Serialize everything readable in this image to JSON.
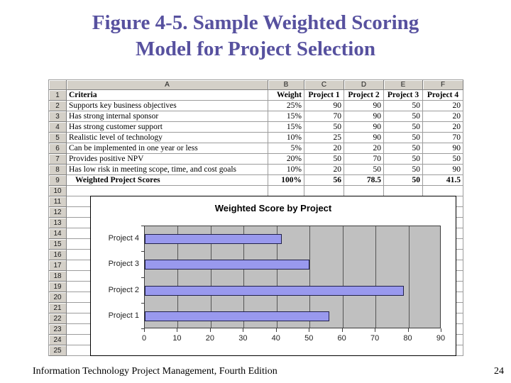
{
  "slide": {
    "title_line1": "Figure 4-5. Sample Weighted Scoring",
    "title_line2": "Model for Project Selection",
    "footer_text": "Information Technology Project Management, Fourth Edition",
    "page_number": "24",
    "title_color": "#57519f"
  },
  "spreadsheet": {
    "column_headers": [
      "A",
      "B",
      "C",
      "D",
      "E",
      "F"
    ],
    "rows": [
      {
        "num": "1",
        "bold": true,
        "cells": [
          "Criteria",
          "Weight",
          "Project 1",
          "Project 2",
          "Project 3",
          "Project 4"
        ]
      },
      {
        "num": "2",
        "cells": [
          "Supports key business objectives",
          "25%",
          "90",
          "90",
          "50",
          "20"
        ]
      },
      {
        "num": "3",
        "cells": [
          "Has strong internal sponsor",
          "15%",
          "70",
          "90",
          "50",
          "20"
        ]
      },
      {
        "num": "4",
        "cells": [
          "Has strong customer support",
          "15%",
          "50",
          "90",
          "50",
          "20"
        ]
      },
      {
        "num": "5",
        "cells": [
          "Realistic level of technology",
          "10%",
          "25",
          "90",
          "50",
          "70"
        ]
      },
      {
        "num": "6",
        "cells": [
          "Can be implemented in one year or less",
          "5%",
          "20",
          "20",
          "50",
          "90"
        ]
      },
      {
        "num": "7",
        "cells": [
          "Provides positive NPV",
          "20%",
          "50",
          "70",
          "50",
          "50"
        ]
      },
      {
        "num": "8",
        "cells": [
          "Has low risk in meeting scope, time, and cost goals",
          "10%",
          "20",
          "50",
          "50",
          "90"
        ]
      },
      {
        "num": "9",
        "bold": true,
        "indent": true,
        "cells": [
          "Weighted Project Scores",
          "100%",
          "56",
          "78.5",
          "50",
          "41.5"
        ]
      }
    ],
    "empty_row_numbers": [
      "10",
      "11",
      "12",
      "13",
      "14",
      "15",
      "16",
      "17",
      "18",
      "19",
      "20",
      "21",
      "22",
      "23",
      "24",
      "25"
    ]
  },
  "chart_data": {
    "type": "bar",
    "orientation": "horizontal",
    "title": "Weighted Score by Project",
    "categories": [
      "Project 4",
      "Project 3",
      "Project 2",
      "Project 1"
    ],
    "values": [
      41.5,
      50,
      78.5,
      56
    ],
    "xlim": [
      0,
      90
    ],
    "xticks": [
      0,
      10,
      20,
      30,
      40,
      50,
      60,
      70,
      80,
      90
    ],
    "gridlines": true,
    "legend": false,
    "bar_color": "#9999ee",
    "plot_bg": "#c0c0c0"
  }
}
